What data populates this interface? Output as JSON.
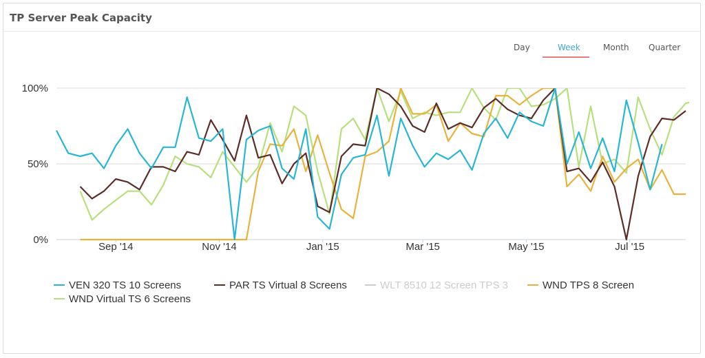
{
  "panel": {
    "title": "TP Server Peak Capacity"
  },
  "tabs": [
    {
      "label": "Day",
      "active": false
    },
    {
      "label": "Week",
      "active": true
    },
    {
      "label": "Month",
      "active": false
    },
    {
      "label": "Quarter",
      "active": false
    }
  ],
  "chart_data": {
    "type": "line",
    "title": "",
    "ylim": [
      0,
      100
    ],
    "y_ticks": [
      {
        "value": 0,
        "label": "0%"
      },
      {
        "value": 50,
        "label": "50%"
      },
      {
        "value": 100,
        "label": "100%"
      }
    ],
    "x_range": [
      "2014-07-28",
      "2015-08-03"
    ],
    "x_ticks": [
      {
        "date": "2014-09-01",
        "label": "Sep '14"
      },
      {
        "date": "2014-11-01",
        "label": "Nov '14"
      },
      {
        "date": "2015-01-01",
        "label": "Jan '15"
      },
      {
        "date": "2015-03-01",
        "label": "Mar '15"
      },
      {
        "date": "2015-05-01",
        "label": "May '15"
      },
      {
        "date": "2015-07-01",
        "label": "Jul '15"
      }
    ],
    "grid": "horizontal",
    "legend_position": "bottom",
    "series": [
      {
        "name": "VEN 320 TS 10 Screens",
        "color": "#27b6d3",
        "visible": true,
        "start": "2014-07-28",
        "values": [
          72,
          57,
          55,
          57,
          47,
          62,
          73,
          57,
          47,
          61,
          61,
          94,
          67,
          65,
          73,
          0,
          66,
          72,
          75,
          47,
          40,
          73,
          15,
          7,
          43,
          54,
          56,
          82,
          42,
          80,
          62,
          48,
          57,
          53,
          59,
          46,
          70,
          80,
          67,
          84,
          78,
          75,
          100,
          50,
          71,
          47,
          67,
          45,
          92,
          64,
          33,
          63
        ]
      },
      {
        "name": "PAR TS Virtual 8 Screens",
        "color": "#5b2c28",
        "visible": true,
        "start": "2014-08-11",
        "values": [
          35,
          27,
          32,
          40,
          38,
          33,
          48,
          48,
          45,
          58,
          56,
          79,
          66,
          52,
          82,
          54,
          56,
          37,
          50,
          57,
          22,
          18,
          55,
          63,
          62,
          100,
          96,
          88,
          75,
          71,
          90,
          73,
          77,
          74,
          87,
          93,
          86,
          82,
          80,
          92,
          100,
          45,
          47,
          38,
          51,
          35,
          0,
          42,
          68,
          80,
          79,
          85
        ]
      },
      {
        "name": "WLT 8510 12 Screen TPS 3",
        "color": "#cccccc",
        "visible": false,
        "start": "2014-08-11",
        "values": []
      },
      {
        "name": "WND TPS 8 Screen",
        "color": "#e8b33c",
        "visible": true,
        "start": "2014-08-11",
        "values": [
          0,
          0,
          0,
          0,
          0,
          0,
          0,
          0,
          0,
          0,
          0,
          0,
          0,
          0,
          0,
          45,
          63,
          62,
          73,
          45,
          69,
          44,
          20,
          14,
          55,
          58,
          65,
          100,
          83,
          83,
          89,
          65,
          77,
          70,
          68,
          95,
          95,
          89,
          95,
          100,
          100,
          35,
          43,
          32,
          55,
          38,
          47,
          53,
          33,
          46,
          30,
          30
        ]
      },
      {
        "name": "WND Virtual TS 6 Screens",
        "color": "#b7e07d",
        "visible": true,
        "start": "2014-08-11",
        "values": [
          32,
          13,
          20,
          26,
          32,
          32,
          23,
          36,
          55,
          50,
          48,
          41,
          58,
          48,
          38,
          48,
          77,
          58,
          88,
          82,
          45,
          17,
          73,
          80,
          66,
          100,
          78,
          98,
          80,
          84,
          82,
          84,
          84,
          100,
          87,
          79,
          100,
          100,
          88,
          89,
          93,
          100,
          48,
          88,
          50,
          53,
          44,
          94,
          73,
          56,
          81,
          90,
          92
        ]
      }
    ]
  }
}
